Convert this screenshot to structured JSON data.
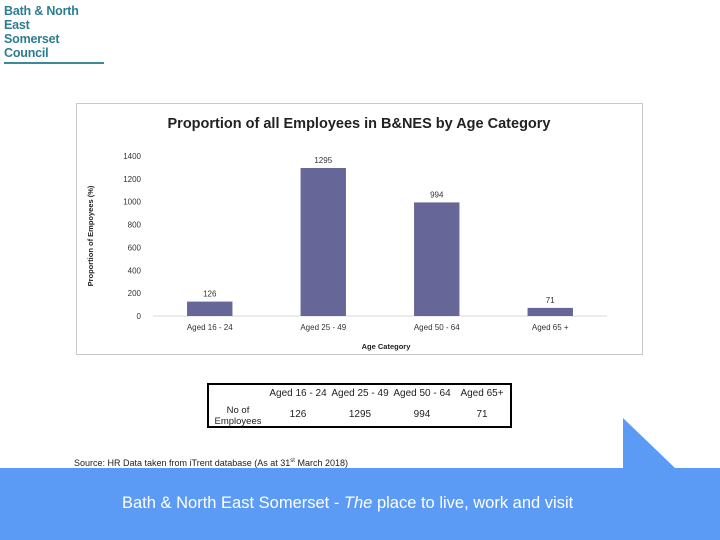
{
  "logo": {
    "line1": "Bath & North East",
    "line2": "Somerset Council"
  },
  "chart_data": {
    "type": "bar",
    "title": "Proportion of all Employees in B&NES by Age Category",
    "xlabel": "Age Category",
    "ylabel": "Proportion of Empoyees (%)",
    "categories": [
      "Aged 16 - 24",
      "Aged 25 - 49",
      "Aged 50 - 64",
      "Aged 65 +"
    ],
    "values": [
      126,
      1295,
      994,
      71
    ],
    "data_labels": [
      "126",
      "1295",
      "994",
      "71"
    ],
    "yticks": [
      "0",
      "200",
      "400",
      "600",
      "800",
      "1000",
      "1200",
      "1400"
    ],
    "ylim": [
      0,
      1400
    ],
    "bar_color": "#666699",
    "grid": false,
    "legend": "none"
  },
  "table": {
    "headers": [
      "Aged 16 - 24",
      "Aged 25 - 49",
      "Aged 50 - 64",
      "Aged 65+"
    ],
    "row_label_line1": "No of",
    "row_label_line2": "Employees",
    "values": [
      "126",
      "1295",
      "994",
      "71"
    ]
  },
  "source": {
    "prefix": "Source: HR Data taken from iTrent database (As at 31",
    "sup": "st",
    "suffix": " March 2018)"
  },
  "footer": {
    "prefix": "Bath & North East Somerset - ",
    "italic": "The",
    "suffix": " place to live, work and visit"
  }
}
